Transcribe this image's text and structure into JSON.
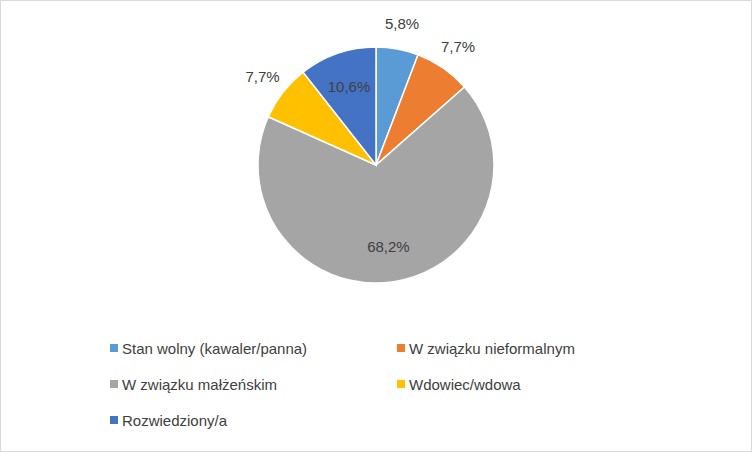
{
  "chart_data": {
    "type": "pie",
    "categories": [
      "Stan wolny (kawaler/panna)",
      "W związku nieformalnym",
      "W związku małżeńskim",
      "Wdowiec/wdowa",
      "Rozwiedziony/a"
    ],
    "values": [
      5.8,
      7.7,
      68.2,
      7.7,
      10.6
    ],
    "value_labels": [
      "5,8%",
      "7,7%",
      "68,2%",
      "7,7%",
      "10,6%"
    ],
    "colors": [
      "#5b9bd5",
      "#ed7d31",
      "#a5a5a5",
      "#ffc000",
      "#4472c4"
    ],
    "data_labels": true,
    "legend": "bottom"
  }
}
